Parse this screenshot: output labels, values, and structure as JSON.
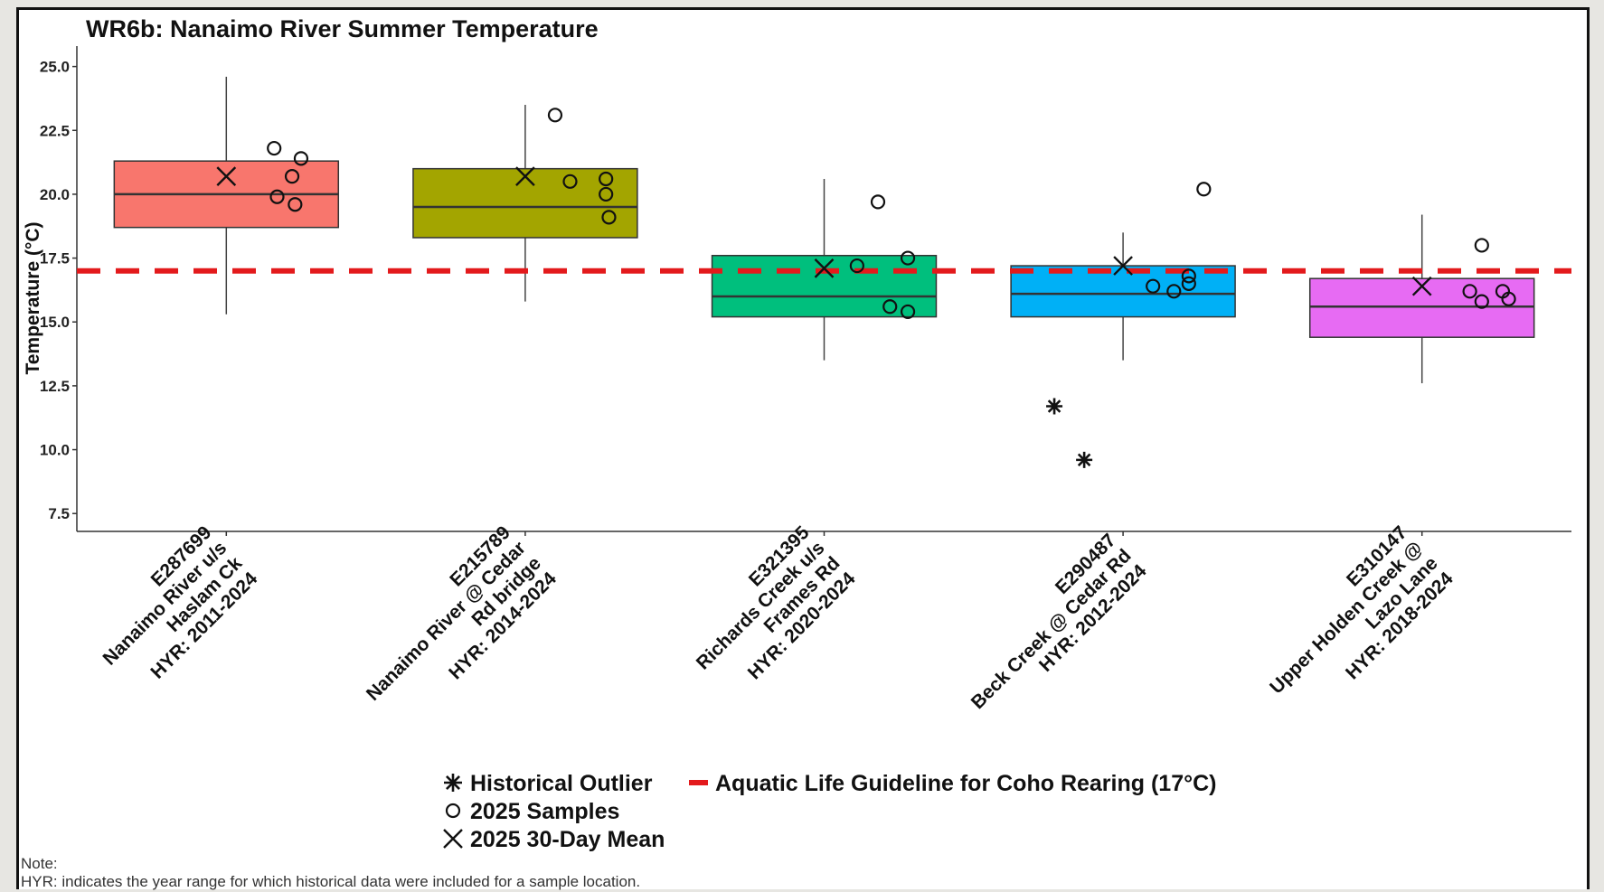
{
  "chart_data": {
    "type": "box",
    "title": "WR6b: Nanaimo River Summer Temperature",
    "ylabel": "Temperature (°C)",
    "xlabel": "",
    "ylim": [
      6.8,
      25.8
    ],
    "yticks": [
      "7.5",
      "10.0",
      "12.5",
      "15.0",
      "17.5",
      "20.0",
      "22.5",
      "25.0"
    ],
    "ytick_values": [
      7.5,
      10.0,
      12.5,
      15.0,
      17.5,
      20.0,
      22.5,
      25.0
    ],
    "grid": false,
    "legend_position": "bottom",
    "guideline": {
      "value": 17.0,
      "color": "#e31a1c",
      "style": "dashed"
    },
    "categories": [
      {
        "lines": [
          "E287699",
          "Nanaimo River u/s",
          "Haslam Ck",
          "HYR: 2011-2024"
        ],
        "color": "#f8766d",
        "box": {
          "whisker_low": 15.3,
          "q1": 18.7,
          "median": 20.0,
          "q3": 21.3,
          "whisker_high": 24.6
        },
        "mean_2025": 20.7,
        "samples_2025": [
          [
            -0.16,
            21.8
          ],
          [
            -0.22,
            20.7
          ],
          [
            -0.17,
            19.9
          ],
          [
            -0.23,
            19.6
          ],
          [
            -0.25,
            21.4
          ]
        ],
        "outliers": []
      },
      {
        "lines": [
          "E215789",
          "Nanaimo River @ Cedar",
          "Rd bridge",
          "HYR: 2014-2024"
        ],
        "color": "#a3a500",
        "box": {
          "whisker_low": 15.8,
          "q1": 18.3,
          "median": 19.5,
          "q3": 21.0,
          "whisker_high": 23.5
        },
        "mean_2025": 20.7,
        "samples_2025": [
          [
            -0.1,
            23.1
          ],
          [
            -0.15,
            20.5
          ],
          [
            -0.27,
            20.6
          ],
          [
            -0.27,
            20.0
          ],
          [
            -0.28,
            19.1
          ]
        ],
        "outliers": []
      },
      {
        "lines": [
          "E321395",
          "Richards Creek u/s",
          "Frames Rd",
          "HYR: 2020-2024"
        ],
        "color": "#00bf7d",
        "box": {
          "whisker_low": 13.5,
          "q1": 15.2,
          "median": 16.0,
          "q3": 17.6,
          "whisker_high": 20.6
        },
        "mean_2025": 17.1,
        "samples_2025": [
          [
            -0.11,
            17.2
          ],
          [
            -0.18,
            19.7
          ],
          [
            -0.28,
            17.5
          ],
          [
            -0.22,
            15.6
          ],
          [
            -0.28,
            15.4
          ]
        ],
        "outliers": []
      },
      {
        "lines": [
          "E290487",
          "Beck Creek @ Cedar Rd",
          "HYR: 2012-2024"
        ],
        "color": "#00b0f6",
        "box": {
          "whisker_low": 13.5,
          "q1": 15.2,
          "median": 16.1,
          "q3": 17.2,
          "whisker_high": 18.5
        },
        "mean_2025": 17.2,
        "samples_2025": [
          [
            -0.1,
            16.4
          ],
          [
            -0.17,
            16.2
          ],
          [
            -0.22,
            16.5
          ],
          [
            -0.22,
            16.8
          ],
          [
            -0.27,
            20.2
          ]
        ],
        "outliers": [
          [
            -0.23,
            11.7
          ],
          [
            -0.13,
            9.6
          ]
        ]
      },
      {
        "lines": [
          "E310147",
          "Upper Holden Creek @",
          "Lazo Lane",
          "HYR: 2018-2024"
        ],
        "color": "#e76bf3",
        "box": {
          "whisker_low": 12.6,
          "q1": 14.4,
          "median": 15.6,
          "q3": 16.7,
          "whisker_high": 19.2
        },
        "mean_2025": 16.4,
        "samples_2025": [
          [
            -0.16,
            16.2
          ],
          [
            -0.2,
            15.8
          ],
          [
            -0.27,
            16.2
          ],
          [
            -0.29,
            15.9
          ],
          [
            -0.2,
            18.0
          ]
        ],
        "outliers": []
      }
    ],
    "legend": {
      "outlier": "Historical Outlier",
      "samples": "2025 Samples",
      "mean": "2025 30-Day Mean",
      "guideline": "Aquatic Life Guideline for Coho Rearing (17°C)"
    }
  },
  "note": {
    "label": "Note:",
    "text": "HYR: indicates the year range for which historical data were included for a sample location."
  }
}
